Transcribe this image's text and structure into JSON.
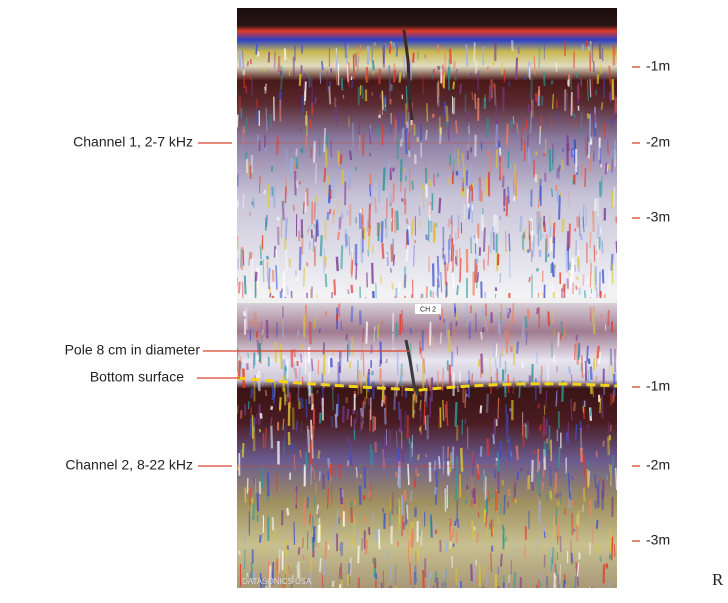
{
  "annotations": {
    "channel_1": "Channel 1, 2-7 kHz",
    "pole": "Pole 8 cm in diameter",
    "bottom_surface": "Bottom surface",
    "channel_2": "Channel 2, 8-22 kHz"
  },
  "depth_scale_1": [
    "-1m",
    "-2m",
    "-3m"
  ],
  "depth_scale_2": [
    "-1m",
    "-2m",
    "-3m"
  ],
  "panel_label": "CH 2",
  "watermark": "DATASONICS USA",
  "corner_letter": "R"
}
